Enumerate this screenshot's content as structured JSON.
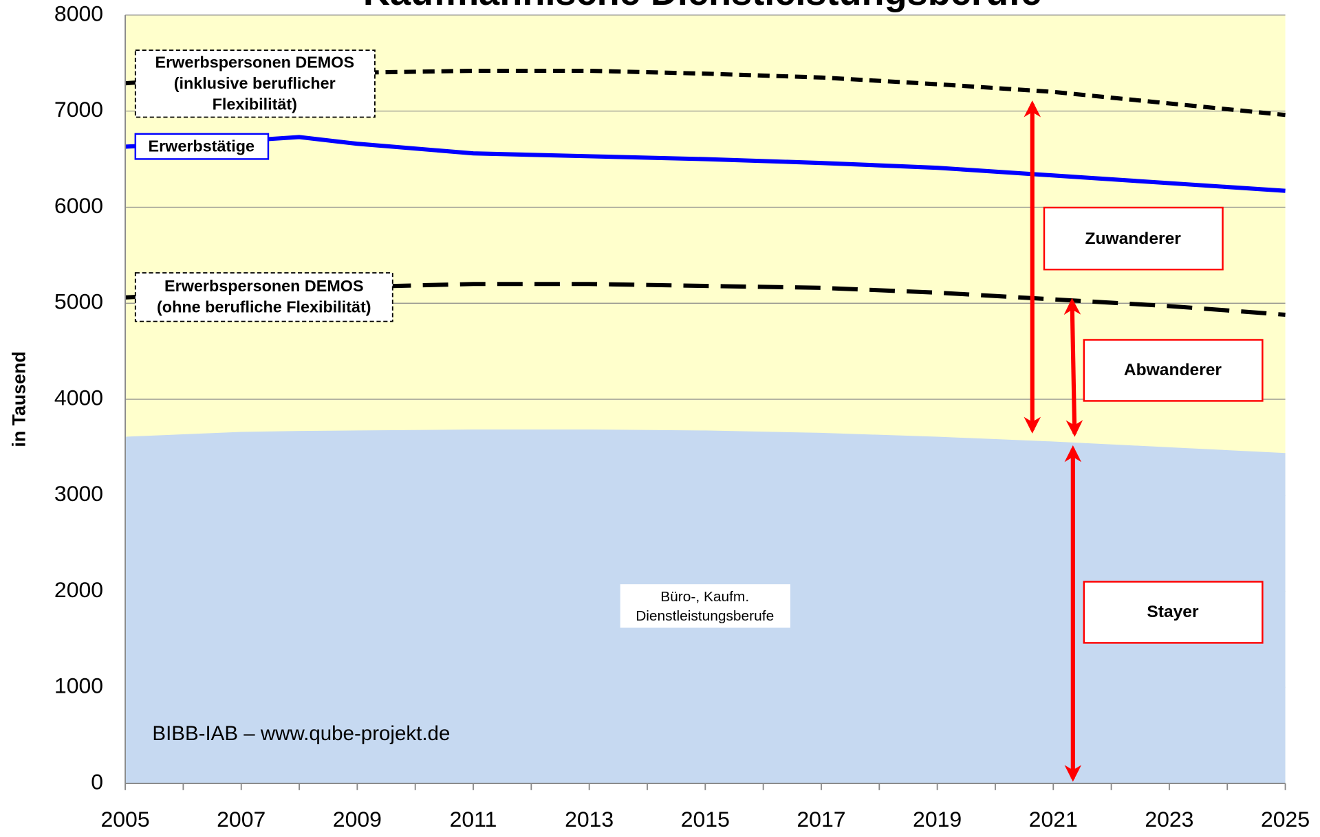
{
  "chart_data": {
    "type": "line",
    "title": "Kaufmännische Dienstleistungsberufe",
    "y_label": "in Tausend",
    "source": "BIBB-IAB – www.qube-projekt.de",
    "x": [
      2005,
      2007,
      2008,
      2009,
      2011,
      2013,
      2015,
      2017,
      2019,
      2021,
      2023,
      2025
    ],
    "xlim": [
      2005,
      2025
    ],
    "xticks": [
      2005,
      2007,
      2009,
      2011,
      2013,
      2015,
      2017,
      2019,
      2021,
      2023,
      2025
    ],
    "ylim": [
      0,
      8000
    ],
    "yticks": [
      0,
      1000,
      2000,
      3000,
      4000,
      5000,
      6000,
      7000,
      8000
    ],
    "grid": true,
    "series": [
      {
        "name": [
          "Büro-, Kaufm.",
          "Dienstleistungsberufe"
        ],
        "kind": "area",
        "color": "#c6d9f1",
        "values": [
          3610,
          3660,
          3670,
          3675,
          3685,
          3685,
          3675,
          3650,
          3610,
          3560,
          3500,
          3440
        ]
      },
      {
        "name": [
          "Erwerbspersonen DEMOS",
          "(inklusive beruflicher",
          "Flexibilität)"
        ],
        "kind": "line",
        "color": "#000000",
        "dash": "14 8",
        "values": [
          7290,
          7370,
          7390,
          7400,
          7420,
          7420,
          7390,
          7350,
          7280,
          7200,
          7080,
          6960
        ]
      },
      {
        "name": [
          "Erwerbstätige"
        ],
        "kind": "line",
        "color": "#0000ff",
        "values": [
          6630,
          6690,
          6730,
          6660,
          6560,
          6530,
          6500,
          6460,
          6410,
          6330,
          6250,
          6170
        ]
      },
      {
        "name": [
          "Erwerbspersonen DEMOS",
          "(ohne berufliche Flexibilität)"
        ],
        "kind": "line",
        "color": "#000000",
        "dash": "30 14",
        "values": [
          5060,
          5120,
          5150,
          5170,
          5200,
          5200,
          5180,
          5160,
          5110,
          5040,
          4970,
          4880
        ]
      }
    ],
    "annotations": [
      "Zuwanderer",
      "Abwanderer",
      "Stayer"
    ]
  }
}
